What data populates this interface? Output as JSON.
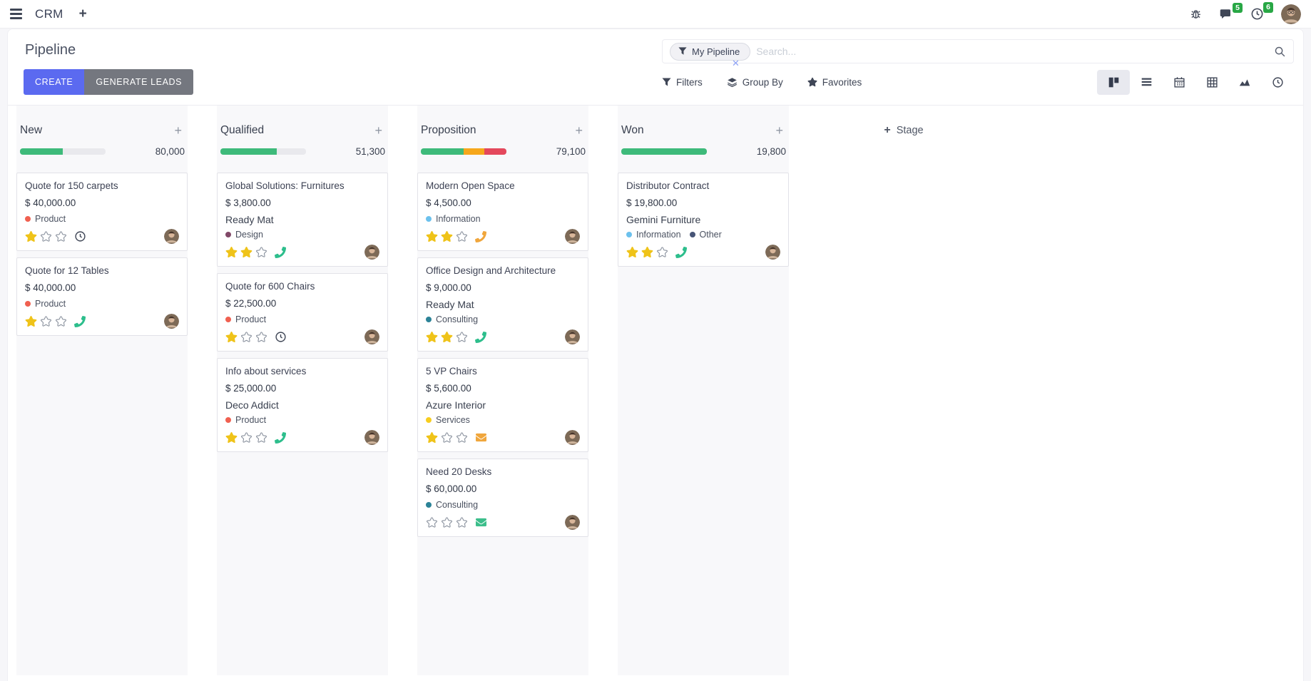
{
  "navbar": {
    "app_name": "CRM",
    "message_count": "5",
    "activity_count": "6"
  },
  "control_panel": {
    "title": "Pipeline",
    "buttons": {
      "create": "CREATE",
      "generate_leads": "GENERATE LEADS"
    },
    "search": {
      "facet": "My Pipeline",
      "placeholder": "Search..."
    },
    "filters_label": "Filters",
    "group_by_label": "Group By",
    "favorites_label": "Favorites"
  },
  "colors": {
    "progress_green": "#3EBA7A",
    "progress_orange": "#F6A71B",
    "progress_red": "#E4485C",
    "star_filled": "#EFC319",
    "star_empty": "#848C99",
    "badge_green": "#28a745",
    "create_button": "#5b6af0"
  },
  "kanban": {
    "add_stage_label": "Stage",
    "columns": [
      {
        "name": "New",
        "total": "80,000",
        "progress": [
          {
            "color": "#3EBA7A",
            "pct": 50
          }
        ],
        "cards": [
          {
            "title": "Quote for 150 carpets",
            "amount": "$ 40,000.00",
            "tags": [
              {
                "label": "Product",
                "color": "#F06050"
              }
            ],
            "stars": 1,
            "activity": {
              "icon": "clock",
              "color": "#3f4656"
            }
          },
          {
            "title": "Quote for 12 Tables",
            "amount": "$ 40,000.00",
            "tags": [
              {
                "label": "Product",
                "color": "#F06050"
              }
            ],
            "stars": 1,
            "activity": {
              "icon": "phone",
              "color": "#2DBE8C"
            }
          }
        ]
      },
      {
        "name": "Qualified",
        "total": "51,300",
        "progress": [
          {
            "color": "#3EBA7A",
            "pct": 66
          }
        ],
        "cards": [
          {
            "title": "Global Solutions: Furnitures",
            "amount": "$ 3,800.00",
            "partner": "Ready Mat",
            "tags": [
              {
                "label": "Design",
                "color": "#814968"
              }
            ],
            "stars": 2,
            "activity": {
              "icon": "phone",
              "color": "#2DBE8C"
            }
          },
          {
            "title": "Quote for 600 Chairs",
            "amount": "$ 22,500.00",
            "tags": [
              {
                "label": "Product",
                "color": "#F06050"
              }
            ],
            "stars": 1,
            "activity": {
              "icon": "clock",
              "color": "#3f4656"
            }
          },
          {
            "title": "Info about services",
            "amount": "$ 25,000.00",
            "partner": "Deco Addict",
            "tags": [
              {
                "label": "Product",
                "color": "#F06050"
              }
            ],
            "stars": 1,
            "activity": {
              "icon": "phone",
              "color": "#2DBE8C"
            }
          }
        ]
      },
      {
        "name": "Proposition",
        "total": "79,100",
        "progress": [
          {
            "color": "#3EBA7A",
            "pct": 50
          },
          {
            "color": "#F6A71B",
            "pct": 24
          },
          {
            "color": "#E4485C",
            "pct": 26
          }
        ],
        "cards": [
          {
            "title": "Modern Open Space",
            "amount": "$ 4,500.00",
            "tags": [
              {
                "label": "Information",
                "color": "#6CC1ED"
              }
            ],
            "stars": 2,
            "activity": {
              "icon": "phone",
              "color": "#F0A63C"
            }
          },
          {
            "title": "Office Design and Architecture",
            "amount": "$ 9,000.00",
            "partner": "Ready Mat",
            "tags": [
              {
                "label": "Consulting",
                "color": "#2C8397"
              }
            ],
            "stars": 2,
            "activity": {
              "icon": "phone",
              "color": "#2DBE8C"
            }
          },
          {
            "title": "5 VP Chairs",
            "amount": "$ 5,600.00",
            "partner": "Azure Interior",
            "tags": [
              {
                "label": "Services",
                "color": "#F7CD1F"
              }
            ],
            "stars": 1,
            "activity": {
              "icon": "envelope",
              "color": "#F0A63C"
            }
          },
          {
            "title": "Need 20 Desks",
            "amount": "$ 60,000.00",
            "tags": [
              {
                "label": "Consulting",
                "color": "#2C8397"
              }
            ],
            "stars": 0,
            "activity": {
              "icon": "envelope",
              "color": "#3CBE8B"
            }
          }
        ]
      },
      {
        "name": "Won",
        "total": "19,800",
        "progress": [
          {
            "color": "#3EBA7A",
            "pct": 100
          }
        ],
        "cards": [
          {
            "title": "Distributor Contract",
            "amount": "$ 19,800.00",
            "partner": "Gemini Furniture",
            "tags": [
              {
                "label": "Information",
                "color": "#6CC1ED"
              },
              {
                "label": "Other",
                "color": "#475577"
              }
            ],
            "stars": 2,
            "activity": {
              "icon": "phone",
              "color": "#2DBE8C"
            }
          }
        ]
      }
    ]
  }
}
